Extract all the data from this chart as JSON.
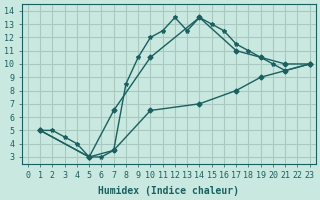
{
  "xlabel": "Humidex (Indice chaleur)",
  "ylabel": "",
  "xlim": [
    -0.5,
    23.5
  ],
  "ylim": [
    2.5,
    14.5
  ],
  "xticks": [
    0,
    1,
    2,
    3,
    4,
    5,
    6,
    7,
    8,
    9,
    10,
    11,
    12,
    13,
    14,
    15,
    16,
    17,
    18,
    19,
    20,
    21,
    22,
    23
  ],
  "yticks": [
    3,
    4,
    5,
    6,
    7,
    8,
    9,
    10,
    11,
    12,
    13,
    14
  ],
  "bg_color": "#c8e8e0",
  "grid_color": "#a8c8c0",
  "line_color": "#1a6060",
  "line1_x": [
    1,
    2,
    3,
    4,
    5,
    6,
    7,
    8,
    9,
    10,
    11,
    12,
    13,
    14,
    15,
    16,
    17,
    18,
    19,
    20,
    21,
    23
  ],
  "line1_y": [
    5,
    5,
    4.5,
    4,
    3,
    3,
    3.5,
    8.5,
    10.5,
    12,
    12.5,
    13.5,
    12.5,
    13.5,
    13,
    12.5,
    11.5,
    11,
    10.5,
    10,
    9.5,
    10
  ],
  "line2_x": [
    1,
    5,
    7,
    10,
    14,
    17,
    19,
    21,
    23
  ],
  "line2_y": [
    5,
    3,
    6.5,
    10.5,
    13.5,
    11,
    10.5,
    10,
    10
  ],
  "line3_x": [
    1,
    5,
    7,
    10,
    14,
    17,
    19,
    21,
    23
  ],
  "line3_y": [
    5,
    3,
    3.5,
    6.5,
    7,
    8,
    9,
    9.5,
    10
  ]
}
